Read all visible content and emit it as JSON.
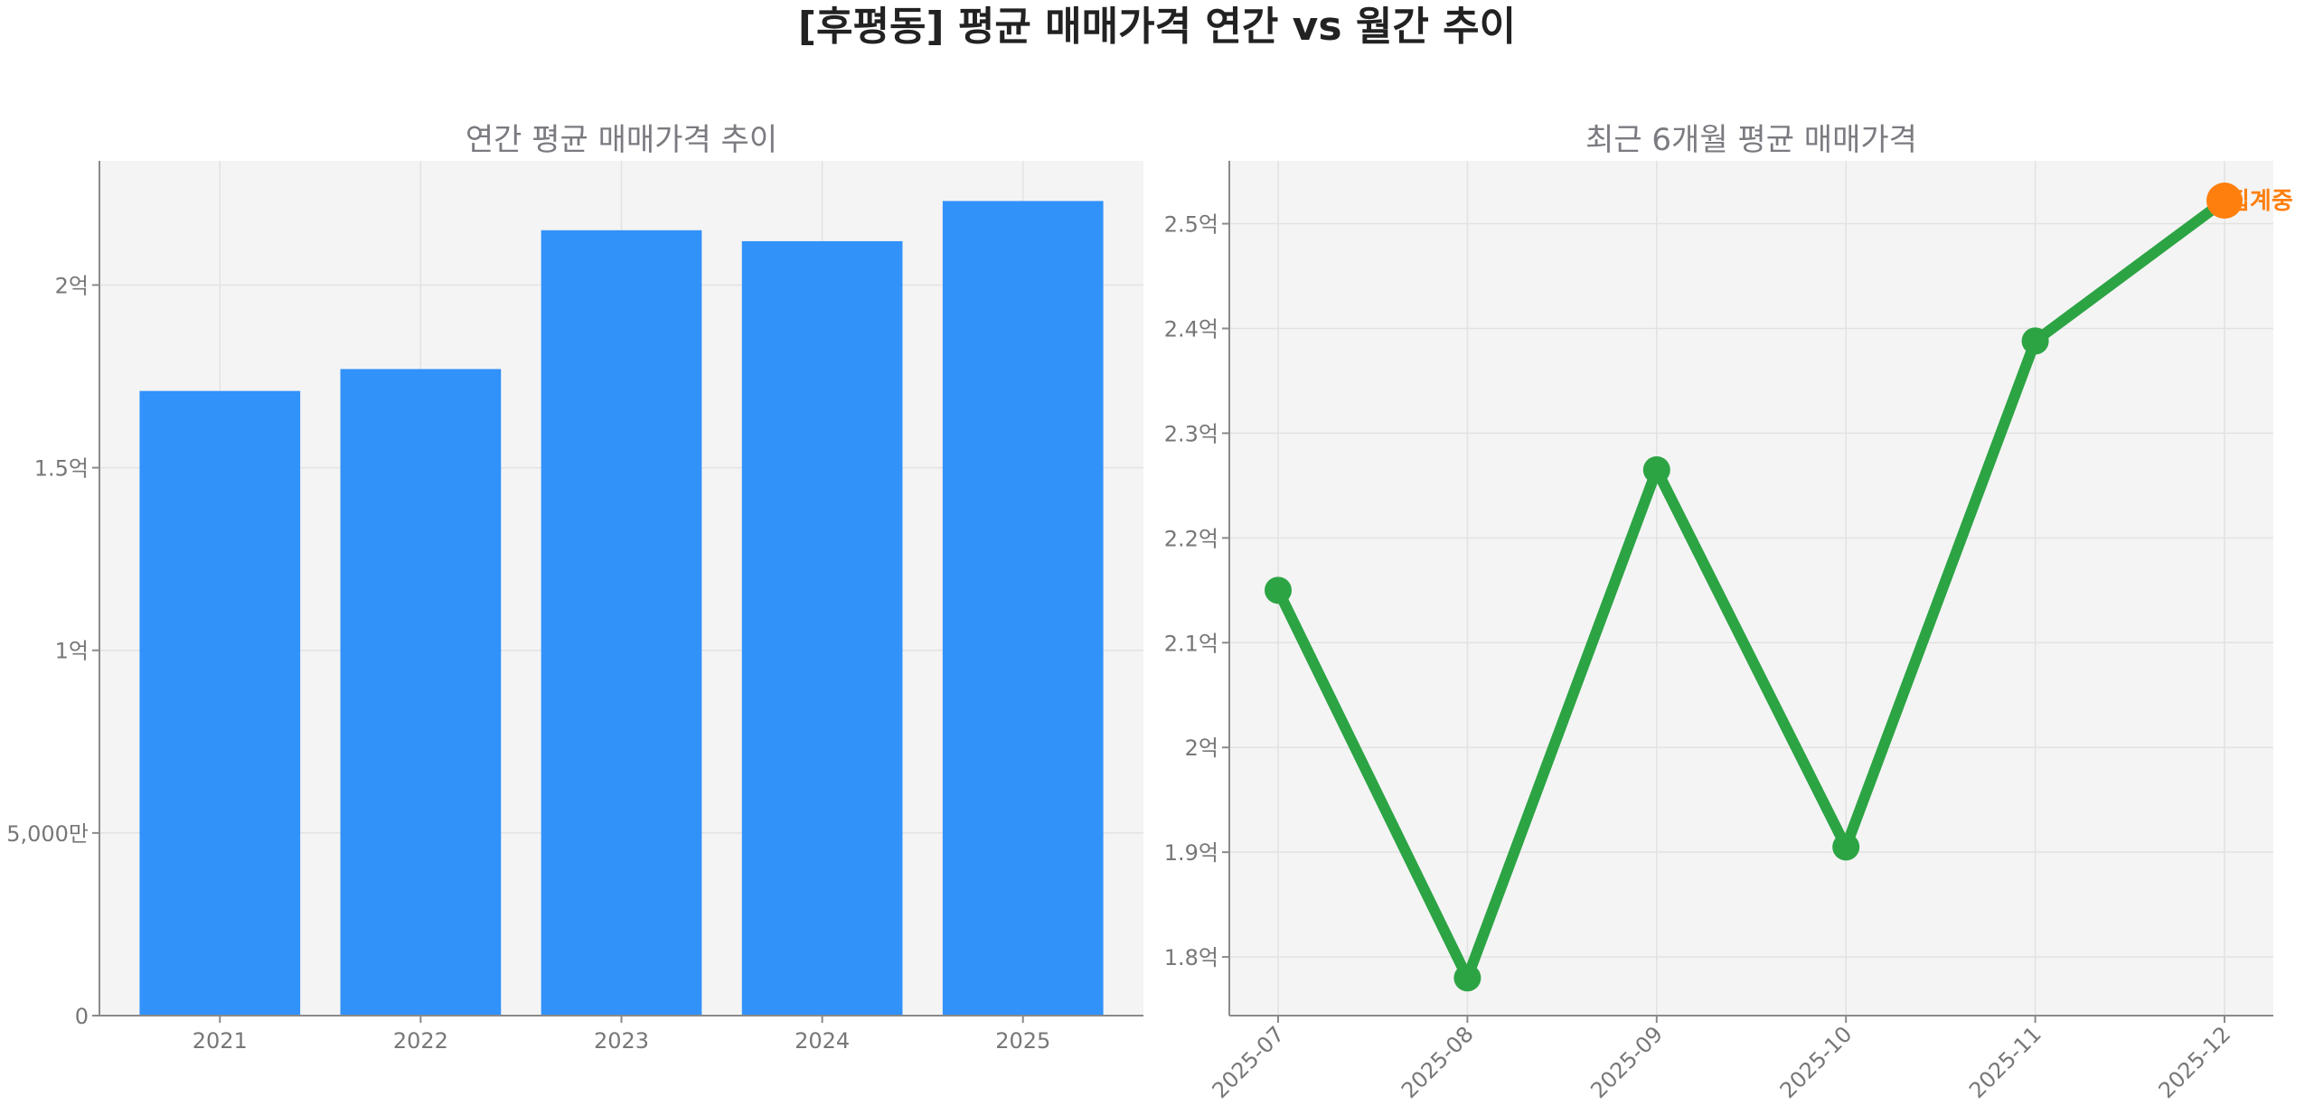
{
  "title": "[후평동] 평균 매매가격 연간 vs 월간 추이",
  "chart_data": [
    {
      "type": "bar",
      "title": "연간 평균 매매가격 추이",
      "categories": [
        "2021",
        "2022",
        "2023",
        "2024",
        "2025"
      ],
      "values": [
        17100,
        17700,
        21500,
        21200,
        22300
      ],
      "unit": "만원",
      "ylim": [
        0,
        23400
      ],
      "yticks": [
        0,
        5000,
        10000,
        15000,
        20000
      ],
      "ytick_labels": [
        "0",
        "5,000만",
        "1억",
        "1.5억",
        "2억"
      ],
      "bar_color": "#3192fa",
      "grid": true
    },
    {
      "type": "line",
      "title": "최근 6개월 평균 매매가격",
      "x": [
        "2025-07",
        "2025-08",
        "2025-09",
        "2025-10",
        "2025-11",
        "2025-12"
      ],
      "values": [
        21500,
        17800,
        22650,
        19050,
        23880,
        25220
      ],
      "unit": "만원",
      "ylim": [
        17440,
        25600
      ],
      "yticks": [
        18000,
        19000,
        20000,
        21000,
        22000,
        23000,
        24000,
        25000
      ],
      "ytick_labels": [
        "1.8억",
        "1.9억",
        "2억",
        "2.1억",
        "2.2억",
        "2.3억",
        "2.4억",
        "2.5억"
      ],
      "line_color": "#2ca444",
      "highlight": {
        "index": 5,
        "label": "집계중",
        "color": "#fe7f0e"
      },
      "grid": true
    }
  ]
}
